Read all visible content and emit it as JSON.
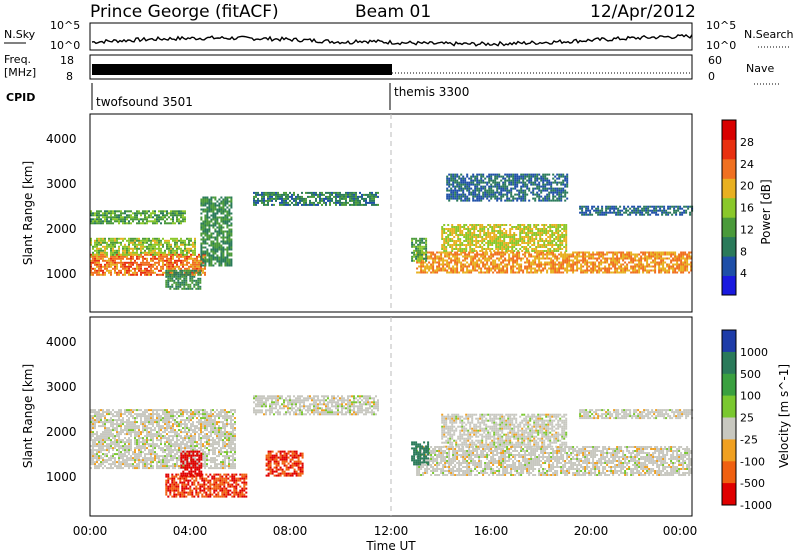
{
  "header": {
    "station": "Prince George (fitACF)",
    "beam": "Beam 01",
    "date": "12/Apr/2012"
  },
  "noise_panel": {
    "left_label": "N.Sky",
    "right_label": "N.Search",
    "right_ticks": [
      "10^5",
      "10^0"
    ],
    "left_ticks": [
      "10^5",
      "10^0"
    ]
  },
  "freq_panel": {
    "left_label_1": "Freq.",
    "left_label_2": "[MHz]",
    "left_ticks": [
      "18",
      "8"
    ],
    "right_label": "Nave",
    "right_ticks": [
      "60",
      "0"
    ]
  },
  "cpid_panel": {
    "label": "CPID",
    "modes": [
      {
        "name": "twofsound 3501",
        "start_hour": 0
      },
      {
        "name": "themis 3300",
        "start_hour": 12
      }
    ]
  },
  "time_axis": {
    "label": "Time UT",
    "ticks": [
      "00:00",
      "04:00",
      "08:00",
      "12:00",
      "16:00",
      "20:00",
      "00:00"
    ]
  },
  "range_axis": {
    "label": "Slant Range [km]",
    "ticks": [
      "1000",
      "2000",
      "3000",
      "4000"
    ]
  },
  "power_colorbar": {
    "label": "Power [dB]",
    "ticks": [
      "4",
      "8",
      "12",
      "16",
      "20",
      "24",
      "28"
    ],
    "colors": [
      "#1a1adf",
      "#1e4fa8",
      "#2a7a5a",
      "#4a9a3a",
      "#8ac82a",
      "#e8b020",
      "#f07020",
      "#e83010",
      "#d80000"
    ]
  },
  "velocity_colorbar": {
    "label": "Velocity [m s^-1]",
    "ticks": [
      "1000",
      "500",
      "100",
      "25",
      "-25",
      "-100",
      "-500",
      "-1000"
    ],
    "colors": [
      "#1e3ca8",
      "#2a7a5a",
      "#3aa040",
      "#7ac830",
      "#c8c8c0",
      "#f0a020",
      "#f06010",
      "#e00000"
    ]
  },
  "chart_data": {
    "type": "heatmap",
    "x_range_hours": [
      0,
      24
    ],
    "y_range_km": [
      180,
      4500
    ],
    "power_bands": [
      {
        "t0": 0.0,
        "t1": 4.6,
        "r0": 1000,
        "r1": 1450,
        "db": 26
      },
      {
        "t0": 0.0,
        "t1": 4.2,
        "r0": 1450,
        "r1": 1800,
        "db": 18
      },
      {
        "t0": 0.0,
        "t1": 3.8,
        "r0": 2100,
        "r1": 2400,
        "db": 14
      },
      {
        "t0": 3.0,
        "t1": 4.4,
        "r0": 700,
        "r1": 1100,
        "db": 12
      },
      {
        "t0": 4.4,
        "t1": 5.6,
        "r0": 1200,
        "r1": 2700,
        "db": 12
      },
      {
        "t0": 6.5,
        "t1": 11.5,
        "r0": 2500,
        "r1": 2800,
        "db": 10
      },
      {
        "t0": 13.0,
        "t1": 24.0,
        "r0": 1050,
        "r1": 1500,
        "db": 24
      },
      {
        "t0": 14.0,
        "t1": 19.0,
        "r0": 1500,
        "r1": 2100,
        "db": 20
      },
      {
        "t0": 19.5,
        "t1": 24.0,
        "r0": 2300,
        "r1": 2500,
        "db": 8
      },
      {
        "t0": 14.2,
        "t1": 19.0,
        "r0": 2600,
        "r1": 3200,
        "db": 8
      },
      {
        "t0": 12.8,
        "t1": 13.4,
        "r0": 1300,
        "r1": 1800,
        "db": 14
      }
    ],
    "velocity_bands": [
      {
        "t0": 0.0,
        "t1": 5.8,
        "r0": 1200,
        "r1": 2500,
        "v": 0
      },
      {
        "t0": 3.0,
        "t1": 6.2,
        "r0": 600,
        "r1": 1100,
        "v": -300
      },
      {
        "t0": 3.6,
        "t1": 4.4,
        "r0": 1050,
        "r1": 1600,
        "v": -800
      },
      {
        "t0": 7.0,
        "t1": 8.5,
        "r0": 1050,
        "r1": 1600,
        "v": -300
      },
      {
        "t0": 6.5,
        "t1": 11.5,
        "r0": 2400,
        "r1": 2800,
        "v": 0
      },
      {
        "t0": 13.0,
        "t1": 24.0,
        "r0": 1050,
        "r1": 1700,
        "v": 0
      },
      {
        "t0": 14.0,
        "t1": 19.0,
        "r0": 1700,
        "r1": 2400,
        "v": 0
      },
      {
        "t0": 12.8,
        "t1": 13.5,
        "r0": 1300,
        "r1": 1800,
        "v": 500
      },
      {
        "t0": 19.5,
        "t1": 24.0,
        "r0": 2300,
        "r1": 2500,
        "v": 0
      }
    ]
  }
}
